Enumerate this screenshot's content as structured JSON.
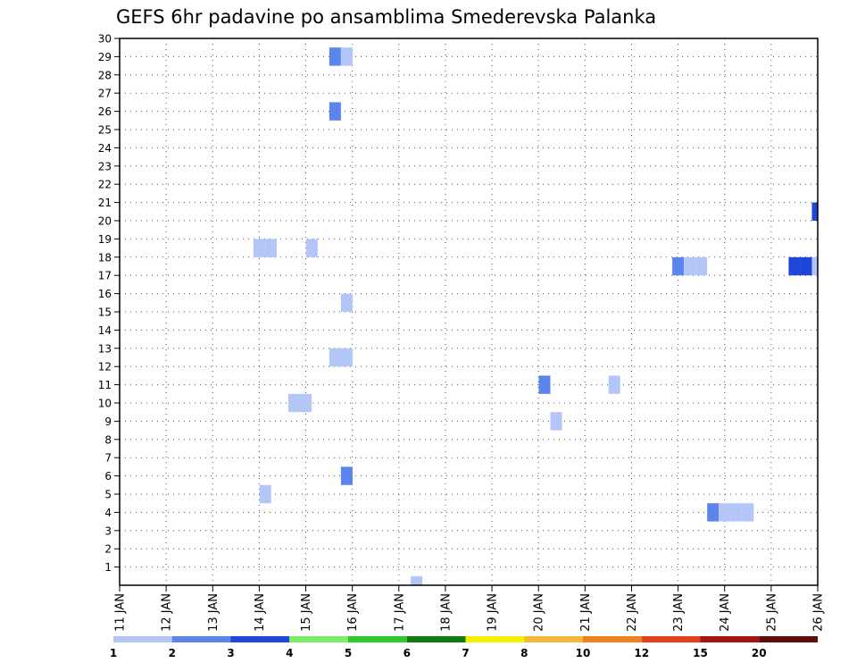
{
  "chart_data": {
    "type": "heatmap",
    "title": "GEFS 6hr padavine po ansamblima Smederevska Palanka",
    "xlabel": "",
    "ylabel": "",
    "x_tick_labels": [
      "11 JAN",
      "12 JAN",
      "13 JAN",
      "14 JAN",
      "15 JAN",
      "16 JAN",
      "17 JAN",
      "18 JAN",
      "19 JAN",
      "20 JAN",
      "21 JAN",
      "22 JAN",
      "23 JAN",
      "24 JAN",
      "25 JAN",
      "26 JAN"
    ],
    "x_range_days": [
      11,
      26
    ],
    "y_tick_labels": [
      "1",
      "2",
      "3",
      "4",
      "5",
      "6",
      "7",
      "8",
      "9",
      "10",
      "11",
      "12",
      "13",
      "14",
      "15",
      "16",
      "17",
      "18",
      "19",
      "20",
      "21",
      "22",
      "23",
      "24",
      "25",
      "26",
      "27",
      "28",
      "29",
      "30"
    ],
    "ylim": [
      0,
      30
    ],
    "grid": true,
    "colorbar": {
      "labels": [
        "1",
        "2",
        "3",
        "4",
        "5",
        "6",
        "7",
        "8",
        "10",
        "12",
        "15",
        "20"
      ],
      "colors": [
        "#b3c6f7",
        "#5b84ec",
        "#1e46d8",
        "#7eeb6b",
        "#2dc92b",
        "#107a10",
        "#f5f000",
        "#f5b63a",
        "#ee8120",
        "#e8421a",
        "#a51313",
        "#5e0d0d"
      ]
    },
    "points": [
      {
        "member": 29,
        "day": 15.63,
        "bin": 2
      },
      {
        "member": 29,
        "day": 15.88,
        "bin": 1
      },
      {
        "member": 26,
        "day": 15.63,
        "bin": 2
      },
      {
        "member": 20.5,
        "day": 26.0,
        "bin": 3
      },
      {
        "member": 18.5,
        "day": 14.0,
        "bin": 1
      },
      {
        "member": 18.5,
        "day": 14.25,
        "bin": 1
      },
      {
        "member": 18.5,
        "day": 15.13,
        "bin": 1
      },
      {
        "member": 17.5,
        "day": 23.0,
        "bin": 2
      },
      {
        "member": 17.5,
        "day": 23.25,
        "bin": 1
      },
      {
        "member": 17.5,
        "day": 23.5,
        "bin": 1
      },
      {
        "member": 17.5,
        "day": 25.5,
        "bin": 3
      },
      {
        "member": 17.5,
        "day": 25.75,
        "bin": 3
      },
      {
        "member": 17.5,
        "day": 26.0,
        "bin": 1
      },
      {
        "member": 15.5,
        "day": 15.88,
        "bin": 1
      },
      {
        "member": 12.5,
        "day": 15.63,
        "bin": 1
      },
      {
        "member": 12.5,
        "day": 15.88,
        "bin": 1
      },
      {
        "member": 11,
        "day": 20.13,
        "bin": 2
      },
      {
        "member": 11,
        "day": 21.63,
        "bin": 1
      },
      {
        "member": 10,
        "day": 14.75,
        "bin": 1
      },
      {
        "member": 10,
        "day": 15.0,
        "bin": 1
      },
      {
        "member": 9,
        "day": 20.38,
        "bin": 1
      },
      {
        "member": 6,
        "day": 15.88,
        "bin": 2
      },
      {
        "member": 5,
        "day": 14.13,
        "bin": 1
      },
      {
        "member": 4,
        "day": 23.75,
        "bin": 2
      },
      {
        "member": 4,
        "day": 24.0,
        "bin": 1
      },
      {
        "member": 4,
        "day": 24.25,
        "bin": 1
      },
      {
        "member": 4,
        "day": 24.5,
        "bin": 1
      },
      {
        "member": 0,
        "day": 17.38,
        "bin": 1
      }
    ]
  }
}
